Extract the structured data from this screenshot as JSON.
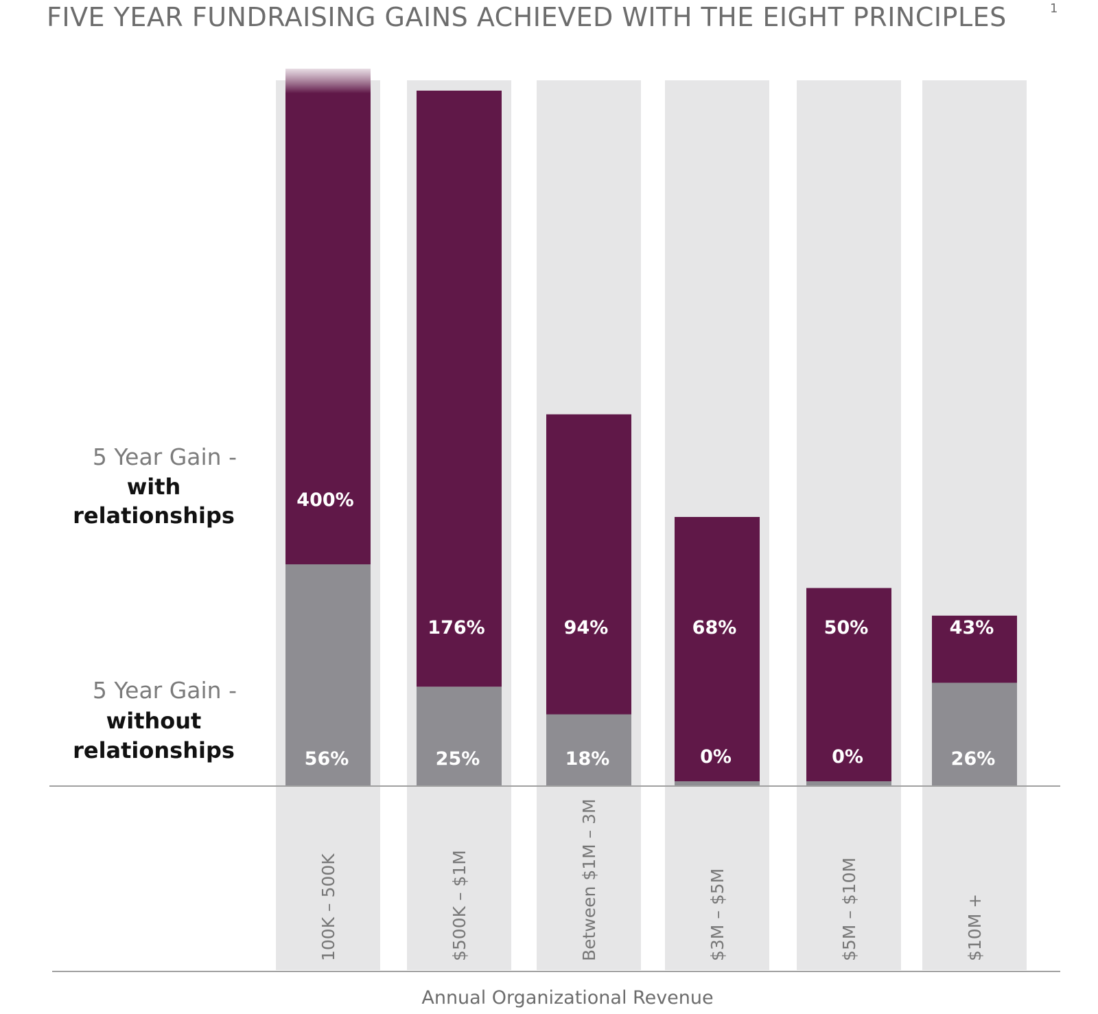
{
  "chart_data": {
    "type": "bar",
    "title": "FIVE YEAR FUNDRAISING GAINS ACHIEVED WITH THE EIGHT PRINCIPLES",
    "title_superscript": "1",
    "xlabel": "Annual Organizational Revenue",
    "ylabel": "",
    "categories": [
      "100K – 500K",
      "$500K – $1M",
      "Between $1M – 3M",
      "$3M – $5M",
      "$5M – $10M",
      "$10M +"
    ],
    "series": [
      {
        "name": "5 Year Gain - with relationships",
        "legend_lines": [
          "5 Year Gain -",
          "with",
          "relationships"
        ],
        "values": [
          400,
          176,
          94,
          68,
          50,
          43
        ],
        "labels": [
          "400%",
          "176%",
          "94%",
          "68%",
          "50%",
          "43%"
        ],
        "color": "#601848"
      },
      {
        "name": "5 Year Gain - without relationships",
        "legend_lines": [
          "5 Year Gain -",
          "without",
          "relationships"
        ],
        "values": [
          56,
          25,
          18,
          0,
          0,
          26
        ],
        "labels": [
          "56%",
          "25%",
          "18%",
          "0%",
          "0%",
          "26%"
        ],
        "color": "#8e8d92"
      }
    ],
    "background_column_color": "#e6e6e7",
    "axis_color": "#9a9a9a",
    "legend_position": "left",
    "grid": false,
    "first_bar_truncated": true
  }
}
